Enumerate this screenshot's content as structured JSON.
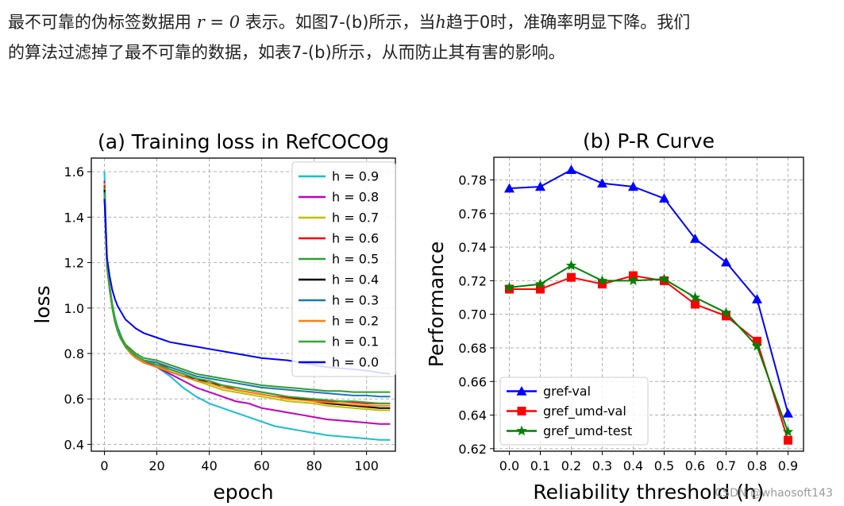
{
  "paragraph": {
    "line1_a": "最不可靠的伪标签数据用 ",
    "line1_math_r": "r",
    "line1_math_eq": " = ",
    "line1_math_zero": "0",
    "line1_b": " 表示。如图7-(b)所示，当",
    "line1_math_h": "h",
    "line1_c": "趋于0时，准确率明显下降。我们",
    "line2": "的算法过滤掉了最不可靠的数据，如表7-(b)所示，从而防止其有害的影响。"
  },
  "watermark": "CSDN @whaosoft143",
  "chart_data": [
    {
      "type": "line",
      "title": "(a) Training loss in RefCOCOg",
      "xlabel": "epoch",
      "ylabel": "loss",
      "xlim": [
        -5,
        111
      ],
      "ylim": [
        0.37,
        1.66
      ],
      "xticks": [
        0,
        20,
        40,
        60,
        80,
        100
      ],
      "yticks": [
        0.4,
        0.6,
        0.8,
        1.0,
        1.2,
        1.4,
        1.6
      ],
      "grid": true,
      "legend_position": "top-right",
      "x": [
        0,
        1,
        2,
        3,
        4,
        5,
        6,
        7,
        8,
        10,
        12,
        15,
        20,
        25,
        30,
        35,
        40,
        45,
        50,
        55,
        60,
        65,
        70,
        75,
        80,
        85,
        90,
        95,
        100,
        105,
        109
      ],
      "series": [
        {
          "name": "h = 0.9",
          "color": "#17becf",
          "values": [
            1.6,
            1.2,
            1.1,
            1.02,
            0.96,
            0.92,
            0.89,
            0.86,
            0.84,
            0.81,
            0.79,
            0.77,
            0.74,
            0.7,
            0.65,
            0.61,
            0.58,
            0.56,
            0.54,
            0.52,
            0.5,
            0.48,
            0.47,
            0.46,
            0.45,
            0.44,
            0.435,
            0.43,
            0.425,
            0.42,
            0.42
          ]
        },
        {
          "name": "h = 0.8",
          "color": "#bf00bf",
          "values": [
            1.56,
            1.19,
            1.09,
            1.01,
            0.95,
            0.91,
            0.88,
            0.86,
            0.84,
            0.81,
            0.79,
            0.77,
            0.74,
            0.71,
            0.68,
            0.65,
            0.63,
            0.61,
            0.59,
            0.58,
            0.56,
            0.55,
            0.54,
            0.53,
            0.52,
            0.51,
            0.505,
            0.5,
            0.495,
            0.49,
            0.49
          ]
        },
        {
          "name": "h = 0.7",
          "color": "#bfbf00",
          "values": [
            1.55,
            1.19,
            1.09,
            1.01,
            0.95,
            0.91,
            0.88,
            0.86,
            0.84,
            0.81,
            0.79,
            0.77,
            0.75,
            0.72,
            0.7,
            0.68,
            0.66,
            0.64,
            0.63,
            0.62,
            0.61,
            0.6,
            0.59,
            0.585,
            0.58,
            0.57,
            0.565,
            0.56,
            0.555,
            0.55,
            0.55
          ]
        },
        {
          "name": "h = 0.6",
          "color": "#ff0000",
          "values": [
            1.54,
            1.19,
            1.09,
            1.01,
            0.95,
            0.91,
            0.88,
            0.86,
            0.84,
            0.81,
            0.79,
            0.77,
            0.76,
            0.73,
            0.71,
            0.69,
            0.67,
            0.66,
            0.64,
            0.63,
            0.62,
            0.61,
            0.605,
            0.6,
            0.595,
            0.59,
            0.59,
            0.585,
            0.58,
            0.58,
            0.58
          ]
        },
        {
          "name": "h = 0.5",
          "color": "#2ca02c",
          "values": [
            1.53,
            1.19,
            1.09,
            1.01,
            0.95,
            0.91,
            0.88,
            0.86,
            0.84,
            0.82,
            0.8,
            0.78,
            0.77,
            0.75,
            0.73,
            0.71,
            0.7,
            0.69,
            0.68,
            0.67,
            0.66,
            0.655,
            0.65,
            0.645,
            0.64,
            0.635,
            0.635,
            0.63,
            0.63,
            0.63,
            0.63
          ]
        },
        {
          "name": "h = 0.4",
          "color": "#000000",
          "values": [
            1.52,
            1.18,
            1.08,
            1.0,
            0.94,
            0.9,
            0.87,
            0.85,
            0.83,
            0.8,
            0.78,
            0.76,
            0.74,
            0.72,
            0.7,
            0.69,
            0.67,
            0.66,
            0.65,
            0.64,
            0.63,
            0.62,
            0.61,
            0.6,
            0.59,
            0.58,
            0.575,
            0.57,
            0.565,
            0.56,
            0.56
          ]
        },
        {
          "name": "h = 0.3",
          "color": "#1f77b4",
          "values": [
            1.51,
            1.18,
            1.08,
            1.0,
            0.94,
            0.9,
            0.87,
            0.85,
            0.83,
            0.81,
            0.79,
            0.77,
            0.76,
            0.74,
            0.72,
            0.7,
            0.69,
            0.68,
            0.67,
            0.66,
            0.65,
            0.645,
            0.64,
            0.635,
            0.63,
            0.625,
            0.62,
            0.615,
            0.615,
            0.61,
            0.61
          ]
        },
        {
          "name": "h = 0.2",
          "color": "#ff7f0e",
          "values": [
            1.5,
            1.18,
            1.08,
            1.0,
            0.94,
            0.9,
            0.87,
            0.85,
            0.83,
            0.8,
            0.78,
            0.76,
            0.74,
            0.72,
            0.7,
            0.68,
            0.67,
            0.65,
            0.64,
            0.63,
            0.62,
            0.61,
            0.6,
            0.595,
            0.59,
            0.585,
            0.58,
            0.575,
            0.57,
            0.57,
            0.57
          ]
        },
        {
          "name": "h = 0.1",
          "color": "#33aa33",
          "values": [
            1.5,
            1.18,
            1.08,
            1.0,
            0.94,
            0.9,
            0.87,
            0.85,
            0.83,
            0.81,
            0.79,
            0.77,
            0.75,
            0.73,
            0.71,
            0.69,
            0.68,
            0.66,
            0.65,
            0.64,
            0.63,
            0.62,
            0.61,
            0.605,
            0.6,
            0.595,
            0.59,
            0.59,
            0.585,
            0.58,
            0.58
          ]
        },
        {
          "name": "h = 0.0",
          "color": "#0000ff",
          "values": [
            1.48,
            1.22,
            1.14,
            1.08,
            1.04,
            1.01,
            0.99,
            0.97,
            0.95,
            0.93,
            0.91,
            0.89,
            0.87,
            0.85,
            0.84,
            0.83,
            0.82,
            0.81,
            0.8,
            0.79,
            0.78,
            0.775,
            0.77,
            0.76,
            0.75,
            0.74,
            0.735,
            0.73,
            0.725,
            0.715,
            0.71
          ]
        }
      ]
    },
    {
      "type": "line",
      "title": "(b) P-R Curve",
      "xlabel": "Reliability threshold (h)",
      "ylabel": "Performance",
      "xlim": [
        -0.05,
        0.95
      ],
      "ylim": [
        0.6185,
        0.7935
      ],
      "xticks": [
        0.0,
        0.1,
        0.2,
        0.3,
        0.4,
        0.5,
        0.6,
        0.7,
        0.8,
        0.9
      ],
      "yticks": [
        0.62,
        0.64,
        0.66,
        0.68,
        0.7,
        0.72,
        0.74,
        0.76,
        0.78
      ],
      "grid": true,
      "legend_position": "bottom-left",
      "x": [
        0.0,
        0.1,
        0.2,
        0.3,
        0.4,
        0.5,
        0.6,
        0.7,
        0.8,
        0.9
      ],
      "series": [
        {
          "name": "gref-val",
          "color": "#0000ff",
          "marker": "triangle",
          "values": [
            0.775,
            0.776,
            0.786,
            0.778,
            0.776,
            0.769,
            0.745,
            0.731,
            0.709,
            0.641
          ]
        },
        {
          "name": "gref_umd-val",
          "color": "#ff0000",
          "marker": "square",
          "values": [
            0.715,
            0.715,
            0.722,
            0.718,
            0.723,
            0.72,
            0.706,
            0.699,
            0.684,
            0.625
          ]
        },
        {
          "name": "gref_umd-test",
          "color": "#008000",
          "marker": "star",
          "values": [
            0.716,
            0.718,
            0.729,
            0.72,
            0.72,
            0.721,
            0.71,
            0.701,
            0.681,
            0.63
          ]
        }
      ]
    }
  ]
}
